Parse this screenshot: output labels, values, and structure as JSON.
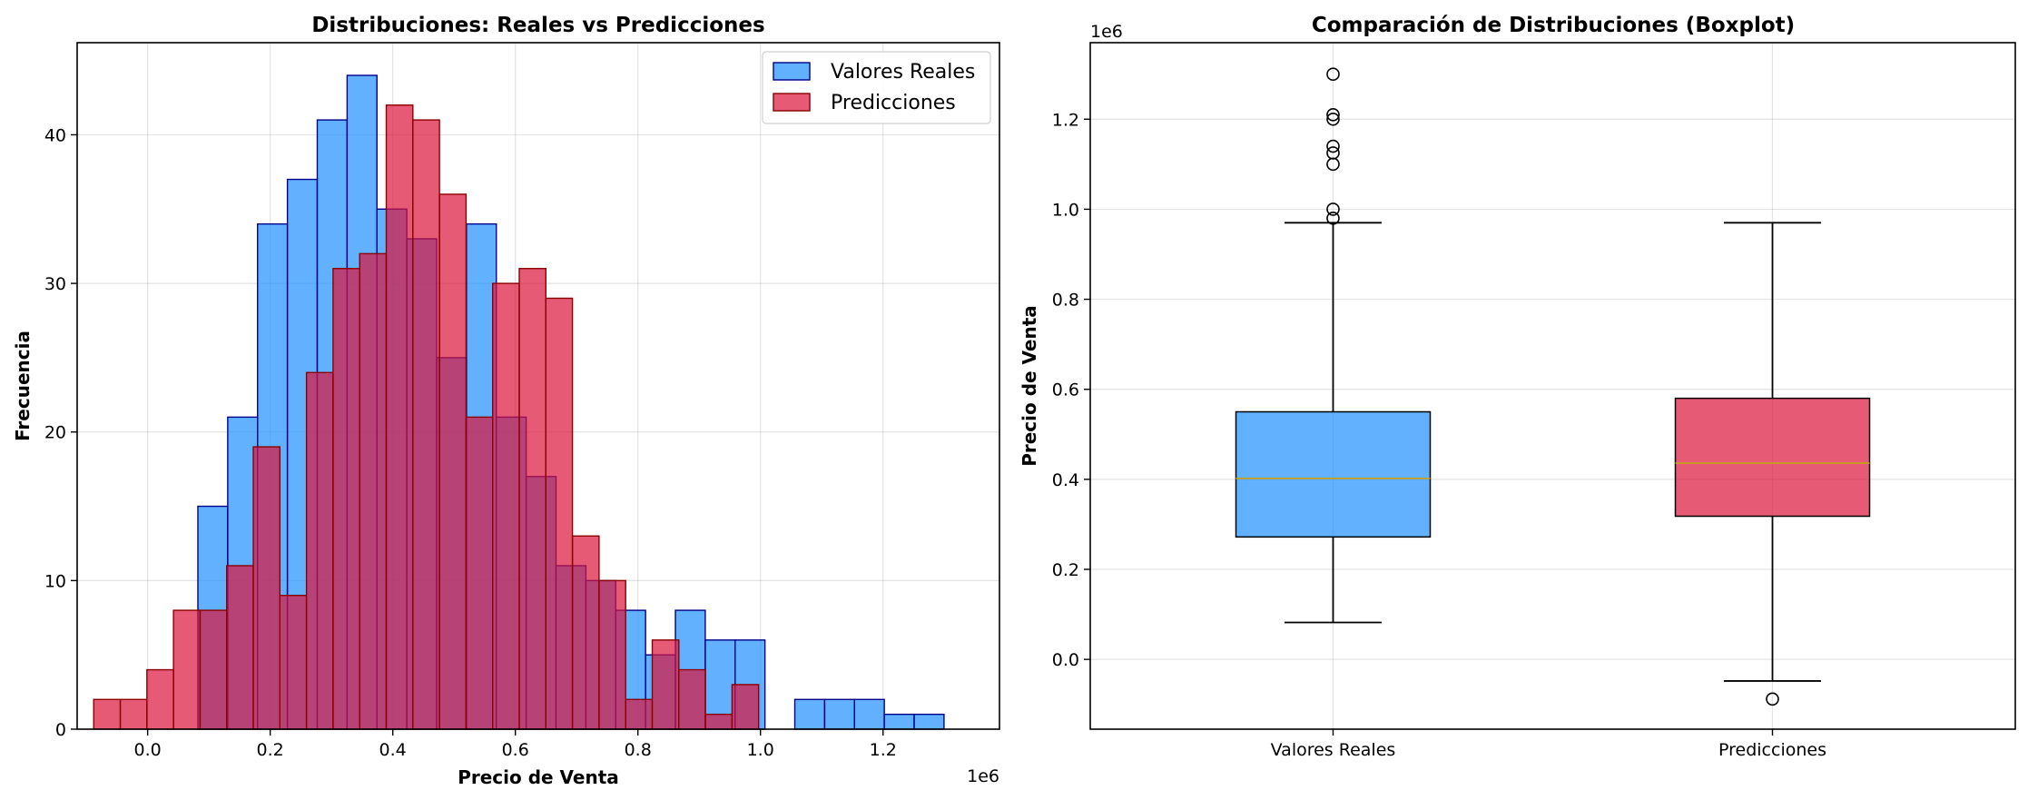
{
  "chart_data": [
    {
      "type": "histogram",
      "title": "Distribuciones: Reales vs Predicciones",
      "xlabel": "Precio de Venta",
      "ylabel": "Frecuencia",
      "x_offset_label": "1e6",
      "xlim": [
        -0.115,
        1.39
      ],
      "ylim": [
        0,
        46.2
      ],
      "xticks": [
        0.0,
        0.2,
        0.4,
        0.6,
        0.8,
        1.0,
        1.2
      ],
      "xtick_labels": [
        "0.0",
        "0.2",
        "0.4",
        "0.6",
        "0.8",
        "1.0",
        "1.2"
      ],
      "yticks": [
        0,
        10,
        20,
        30,
        40
      ],
      "ytick_labels": [
        "0",
        "10",
        "20",
        "30",
        "40"
      ],
      "grid": true,
      "legend_position": "top-right",
      "series": [
        {
          "name": "Valores Reales",
          "color": "#1E90FF",
          "edge_color": "#00008B",
          "opacity": 0.7,
          "bins": [
            [
              0.082,
              0.1307,
              15
            ],
            [
              0.1307,
              0.1794,
              21
            ],
            [
              0.1794,
              0.2281,
              34
            ],
            [
              0.2281,
              0.2768,
              37
            ],
            [
              0.2768,
              0.3255,
              41
            ],
            [
              0.3255,
              0.3742,
              44
            ],
            [
              0.3742,
              0.4229,
              35
            ],
            [
              0.4229,
              0.4716,
              33
            ],
            [
              0.4716,
              0.5203,
              25
            ],
            [
              0.5203,
              0.569,
              34
            ],
            [
              0.569,
              0.6177,
              21
            ],
            [
              0.6177,
              0.6664,
              17
            ],
            [
              0.6664,
              0.7151,
              11
            ],
            [
              0.7151,
              0.7638,
              10
            ],
            [
              0.7638,
              0.8125,
              8
            ],
            [
              0.8125,
              0.8612,
              5
            ],
            [
              0.8612,
              0.9099,
              8
            ],
            [
              0.9099,
              0.9586,
              6
            ],
            [
              0.9586,
              1.0073,
              6
            ],
            [
              1.056,
              1.1047,
              2
            ],
            [
              1.1047,
              1.1534,
              2
            ],
            [
              1.1534,
              1.2021,
              2
            ],
            [
              1.2021,
              1.2508,
              1
            ],
            [
              1.2508,
              1.2995,
              1
            ]
          ]
        },
        {
          "name": "Predicciones",
          "color": "#DC143C",
          "edge_color": "#8B0000",
          "opacity": 0.7,
          "bins": [
            [
              -0.088,
              -0.0446,
              2
            ],
            [
              -0.0446,
              -0.0012,
              2
            ],
            [
              -0.0012,
              0.0422,
              4
            ],
            [
              0.0422,
              0.0856,
              8
            ],
            [
              0.0856,
              0.129,
              8
            ],
            [
              0.129,
              0.1724,
              11
            ],
            [
              0.1724,
              0.2158,
              19
            ],
            [
              0.2158,
              0.2592,
              9
            ],
            [
              0.2592,
              0.3026,
              24
            ],
            [
              0.3026,
              0.346,
              31
            ],
            [
              0.346,
              0.3894,
              32
            ],
            [
              0.3894,
              0.4328,
              42
            ],
            [
              0.4328,
              0.4762,
              41
            ],
            [
              0.4762,
              0.5196,
              36
            ],
            [
              0.5196,
              0.563,
              21
            ],
            [
              0.563,
              0.6064,
              30
            ],
            [
              0.6064,
              0.6498,
              31
            ],
            [
              0.6498,
              0.6932,
              29
            ],
            [
              0.6932,
              0.7366,
              13
            ],
            [
              0.7366,
              0.78,
              10
            ],
            [
              0.78,
              0.8234,
              2
            ],
            [
              0.8234,
              0.8668,
              6
            ],
            [
              0.8668,
              0.9102,
              4
            ],
            [
              0.9102,
              0.9536,
              1
            ],
            [
              0.9536,
              0.997,
              3
            ]
          ]
        }
      ]
    },
    {
      "type": "boxplot",
      "title": "Comparación de Distribuciones (Boxplot)",
      "xlabel": "",
      "ylabel": "Precio de Venta",
      "y_offset_label": "1e6",
      "ylim": [
        -0.155,
        1.37
      ],
      "yticks": [
        0.0,
        0.2,
        0.4,
        0.6,
        0.8,
        1.0,
        1.2
      ],
      "ytick_labels": [
        "0.0",
        "0.2",
        "0.4",
        "0.6",
        "0.8",
        "1.0",
        "1.2"
      ],
      "categories": [
        "Valores Reales",
        "Predicciones"
      ],
      "grid": true,
      "boxes": [
        {
          "name": "Valores Reales",
          "color": "#1E90FF",
          "whisker_low": 0.082,
          "q1": 0.272,
          "median": 0.402,
          "q3": 0.55,
          "whisker_high": 0.97,
          "outliers": [
            0.98,
            1.0,
            1.1,
            1.125,
            1.14,
            1.2,
            1.21,
            1.3
          ]
        },
        {
          "name": "Predicciones",
          "color": "#DC143C",
          "whisker_low": -0.048,
          "q1": 0.318,
          "median": 0.436,
          "q3": 0.58,
          "whisker_high": 0.97,
          "outliers": [
            -0.088
          ]
        }
      ]
    }
  ]
}
